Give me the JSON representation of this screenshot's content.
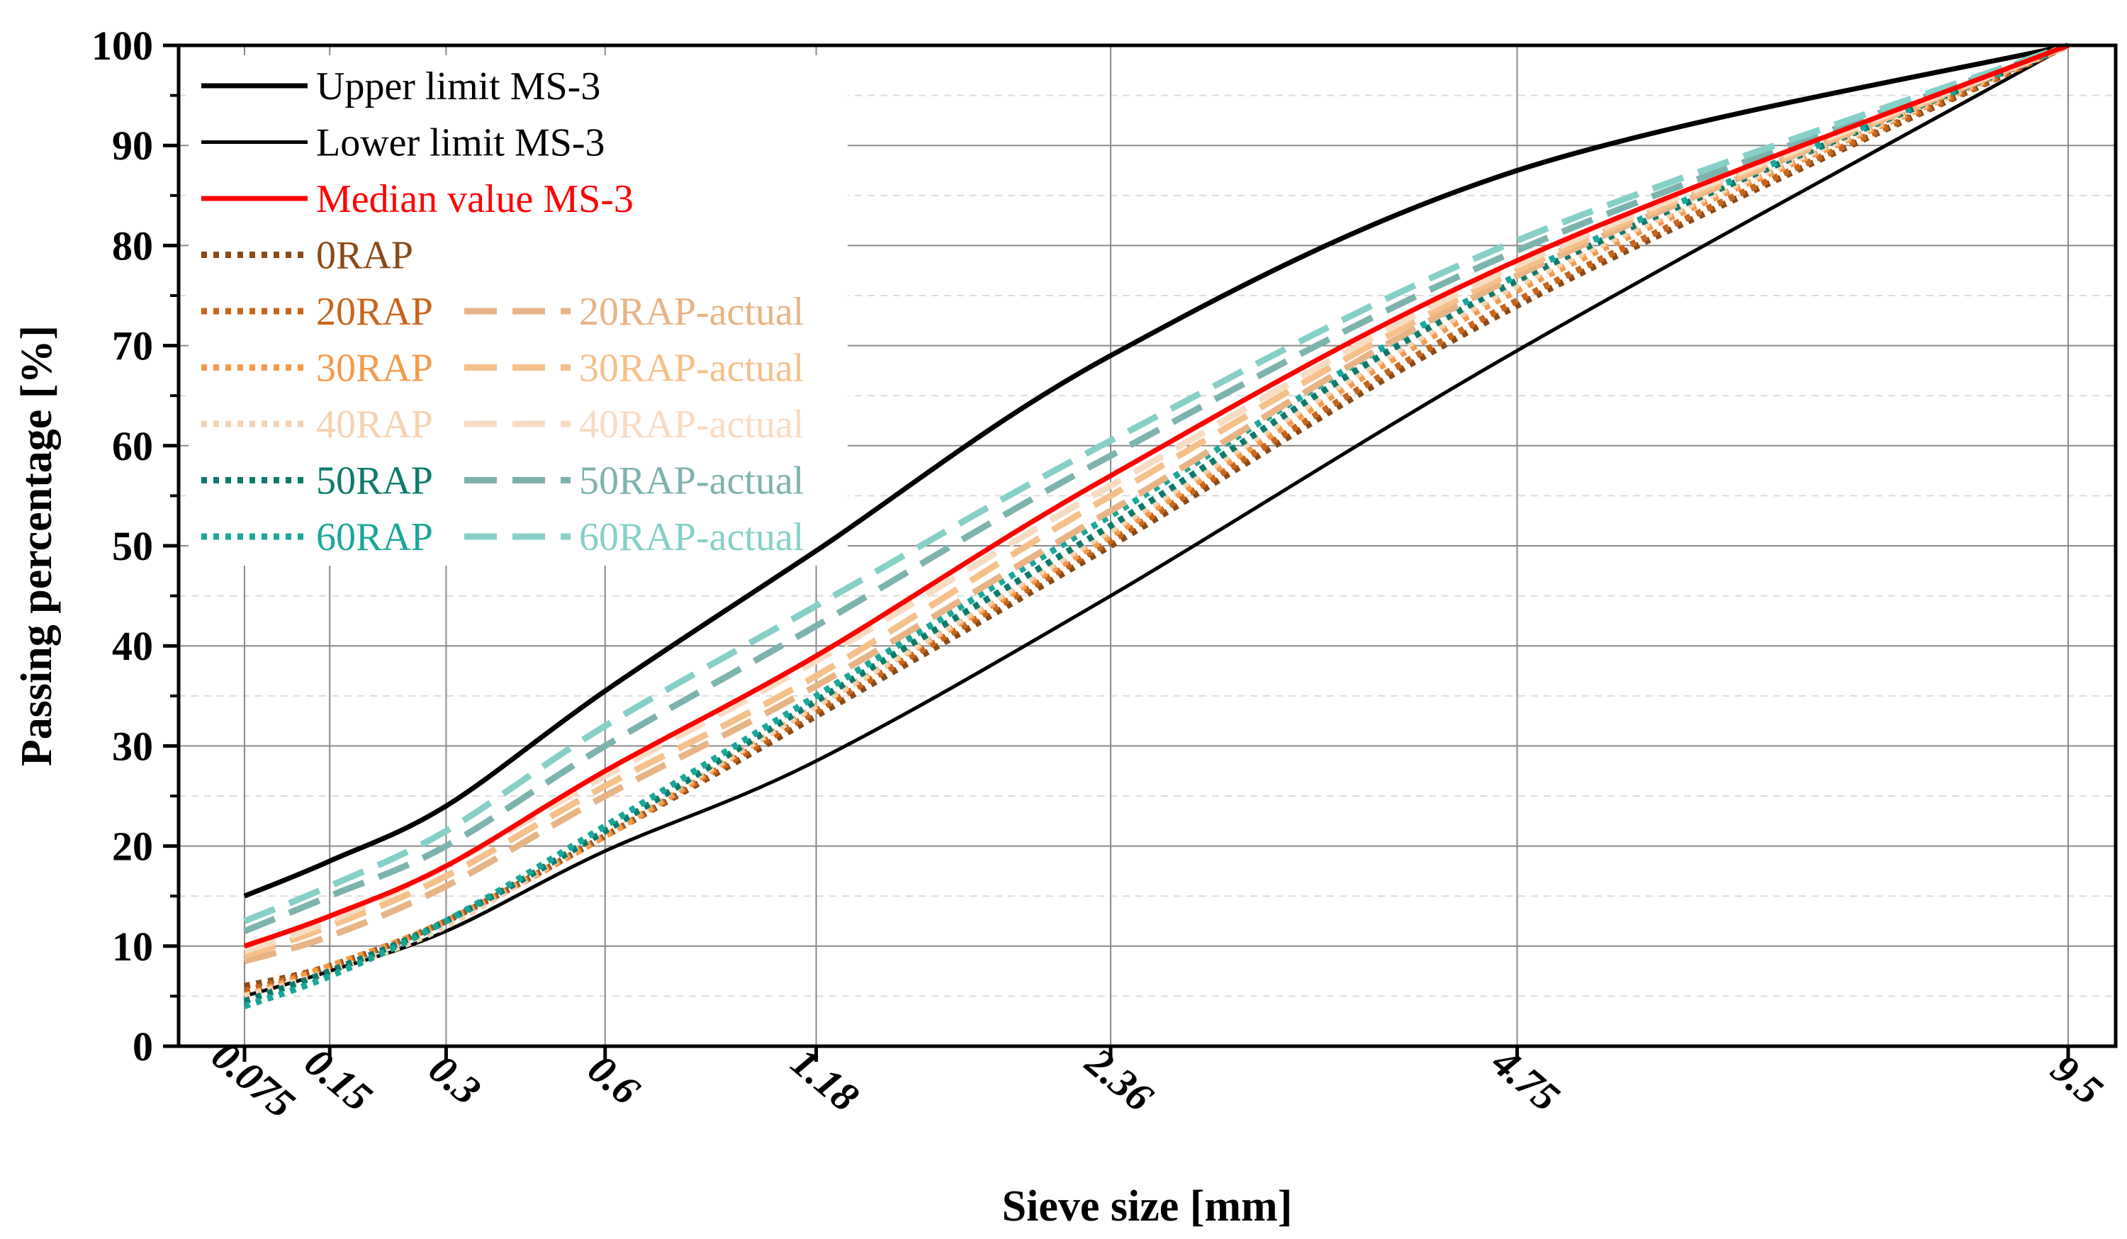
{
  "chart_data": {
    "type": "line",
    "title": "",
    "xlabel": "Sieve size [mm]",
    "ylabel": "Passing percentage [%]",
    "x_scale": "power 0.45",
    "categories": [
      "0.075",
      "0.15",
      "0.3",
      "0.6",
      "1.18",
      "2.36",
      "4.75",
      "9.5"
    ],
    "x": [
      0.075,
      0.15,
      0.3,
      0.6,
      1.18,
      2.36,
      4.75,
      9.5
    ],
    "ylim": [
      0,
      100
    ],
    "yticks": [
      "0",
      "10",
      "20",
      "30",
      "40",
      "50",
      "60",
      "70",
      "80",
      "90",
      "100"
    ],
    "grid": true,
    "legend_position": "top-left",
    "series": [
      {
        "name": "Upper limit MS-3",
        "color": "#000000",
        "style": "solid",
        "width": 7,
        "values": [
          15,
          18.5,
          24,
          35.5,
          49.5,
          69,
          87.5,
          100
        ]
      },
      {
        "name": "Lower limit MS-3",
        "color": "#000000",
        "style": "solid",
        "width": 5,
        "values": [
          5,
          7.5,
          11.5,
          19.5,
          28.5,
          45,
          69.5,
          100
        ]
      },
      {
        "name": "Median value MS-3",
        "color": "#ff0000",
        "style": "solid",
        "width": 7,
        "values": [
          10,
          13,
          18,
          27.5,
          39,
          57,
          78.5,
          100
        ]
      },
      {
        "name": "0RAP",
        "color": "#8b4a16",
        "style": "dot",
        "width": 9,
        "values": [
          6,
          8,
          12.5,
          21,
          33,
          50,
          74,
          100
        ]
      },
      {
        "name": "20RAP",
        "color": "#c8651c",
        "style": "dot",
        "width": 9,
        "values": [
          5.5,
          8,
          12.5,
          21,
          33.5,
          50.5,
          74.5,
          100
        ]
      },
      {
        "name": "20RAP-actual",
        "color": "#e8b486",
        "style": "dash",
        "width": 9,
        "values": [
          8.5,
          11,
          16,
          25,
          36,
          53.5,
          77,
          100
        ]
      },
      {
        "name": "30RAP",
        "color": "#f59a4a",
        "style": "dot",
        "width": 9,
        "values": [
          5,
          8,
          12.5,
          21,
          34,
          51,
          75.5,
          100
        ]
      },
      {
        "name": "30RAP-actual",
        "color": "#f5c08a",
        "style": "dash",
        "width": 9,
        "values": [
          9,
          12,
          17,
          26,
          37,
          55,
          77.5,
          100
        ]
      },
      {
        "name": "40RAP",
        "color": "#f5d2b0",
        "style": "dot",
        "width": 9,
        "values": [
          5,
          7.5,
          12,
          21.5,
          34,
          51.5,
          76,
          100
        ]
      },
      {
        "name": "40RAP-actual",
        "color": "#f8dcc2",
        "style": "dash",
        "width": 9,
        "values": [
          9.5,
          12.5,
          18,
          27,
          38.5,
          56,
          78,
          100
        ]
      },
      {
        "name": "50RAP",
        "color": "#0e7a6c",
        "style": "dot",
        "width": 9,
        "values": [
          4.5,
          7.5,
          12.5,
          21.5,
          34.5,
          52,
          76.5,
          100
        ]
      },
      {
        "name": "50RAP-actual",
        "color": "#7db3ad",
        "style": "dash",
        "width": 9,
        "values": [
          11.5,
          15,
          20,
          30,
          42,
          59,
          79.5,
          100
        ]
      },
      {
        "name": "60RAP",
        "color": "#1aa79a",
        "style": "dot",
        "width": 9,
        "values": [
          4,
          7,
          12.5,
          22,
          35,
          53,
          77,
          100
        ]
      },
      {
        "name": "60RAP-actual",
        "color": "#86d0c7",
        "style": "dash",
        "width": 9,
        "values": [
          12.5,
          16,
          21.5,
          32,
          44,
          60.5,
          80.5,
          100
        ]
      }
    ]
  }
}
